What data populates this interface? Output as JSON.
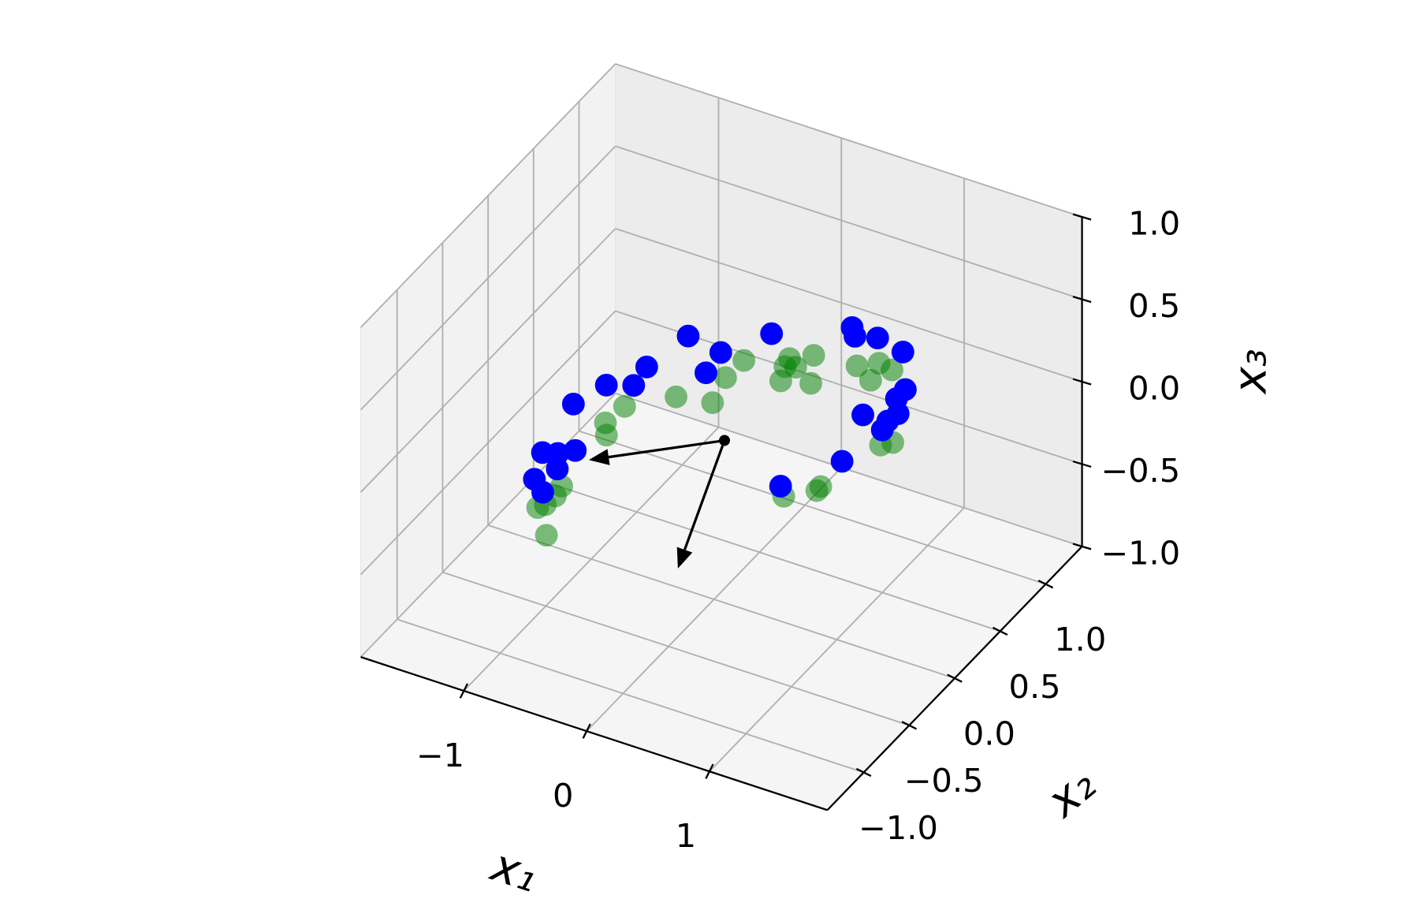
{
  "chart_data": {
    "type": "scatter3d",
    "xlabel": "x₁",
    "ylabel": "x₂",
    "zlabel": "x₃",
    "xlim": [
      -1.84,
      1.96
    ],
    "ylim": [
      -1.4,
      1.4
    ],
    "zlim": [
      -1,
      1
    ],
    "xticks": [
      {
        "value": -1,
        "label": "−1"
      },
      0,
      1
    ],
    "yticks": [
      {
        "value": -1,
        "label": "−1.0"
      },
      {
        "value": -0.5,
        "label": "−0.5"
      },
      {
        "value": 0,
        "label": "0.0"
      },
      {
        "value": 0.5,
        "label": "0.5"
      },
      {
        "value": 1,
        "label": "1.0"
      }
    ],
    "zticks": [
      {
        "value": -1,
        "label": "−1.0"
      },
      {
        "value": -0.5,
        "label": "−0.5"
      },
      {
        "value": 0,
        "label": "0.0"
      },
      {
        "value": 0.5,
        "label": "0.5"
      },
      {
        "value": 1,
        "label": "1.0"
      }
    ],
    "grid": true,
    "series": [
      {
        "color": "#008000",
        "alpha": 0.5,
        "x": [
          -0.12,
          0.2,
          0.36,
          0.2,
          0.28,
          -0.18,
          0.24,
          0.47,
          -0.45,
          -0.16,
          -0.78,
          0.72,
          0.87,
          0.99,
          0.89,
          -0.84,
          -0.78,
          1.26,
          1.33,
          1.01,
          1.0,
          0.79,
          -0.87,
          -0.87,
          -0.94,
          -0.9,
          -0.75
        ],
        "y": [
          0.49,
          0.56,
          0.61,
          0.51,
          0.52,
          0.37,
          0.41,
          0.43,
          0.19,
          0.2,
          0.07,
          0.6,
          0.64,
          0.62,
          0.52,
          -0.06,
          -0.13,
          0.13,
          0.17,
          -0.19,
          -0.22,
          -0.3,
          -0.5,
          -0.57,
          -0.67,
          -0.64,
          -0.83
        ],
        "z": [
          0.14,
          0.19,
          0.22,
          0.17,
          0.18,
          0.09,
          0.15,
          0.18,
          0.01,
          0.04,
          -0.06,
          0.25,
          0.28,
          0.28,
          0.25,
          -0.1,
          -0.12,
          0.17,
          0.18,
          0.04,
          0.03,
          -0.01,
          -0.24,
          -0.26,
          -0.29,
          -0.28,
          -0.32
        ]
      },
      {
        "color": "#0000ff",
        "alpha": 1,
        "x": [
          -0.64,
          -0.33,
          -0.05,
          0.51,
          0.57,
          0.74,
          0.99,
          -0.8,
          -0.34,
          -1.01,
          -0.81,
          -1.16,
          1.18,
          1.16,
          1.24,
          0.99,
          1.2,
          1.2,
          -1.16,
          -1.05,
          -0.93,
          -0.98,
          -1.1,
          -0.98,
          1.05,
          0.72
        ],
        "y": [
          0.58,
          0.52,
          0.7,
          0.83,
          0.78,
          0.8,
          0.74,
          0.34,
          0.37,
          0.18,
          0.21,
          0.02,
          0.51,
          0.44,
          0.35,
          0.3,
          0.29,
          0.23,
          -0.32,
          -0.3,
          -0.27,
          -0.4,
          -0.49,
          -0.56,
          -0.01,
          -0.24
        ],
        "z": [
          0.11,
          0.12,
          0.2,
          0.3,
          0.29,
          0.31,
          0.32,
          0.02,
          0.08,
          -0.05,
          -0.02,
          -0.11,
          0.27,
          0.25,
          0.23,
          0.19,
          0.21,
          0.19,
          -0.21,
          -0.2,
          -0.17,
          -0.22,
          -0.26,
          -0.27,
          0.1,
          0.0
        ]
      }
    ],
    "arrow_color": "#000000",
    "arrows": [
      {
        "x": [
          0.1,
          -0.79
        ],
        "y": [
          -0.02,
          -0.31
        ],
        "z": [
          0.0,
          -0.17
        ]
      },
      {
        "x": [
          0.1,
          0.35
        ],
        "y": [
          -0.02,
          -0.87
        ],
        "z": [
          0.0,
          -0.23
        ]
      }
    ]
  }
}
